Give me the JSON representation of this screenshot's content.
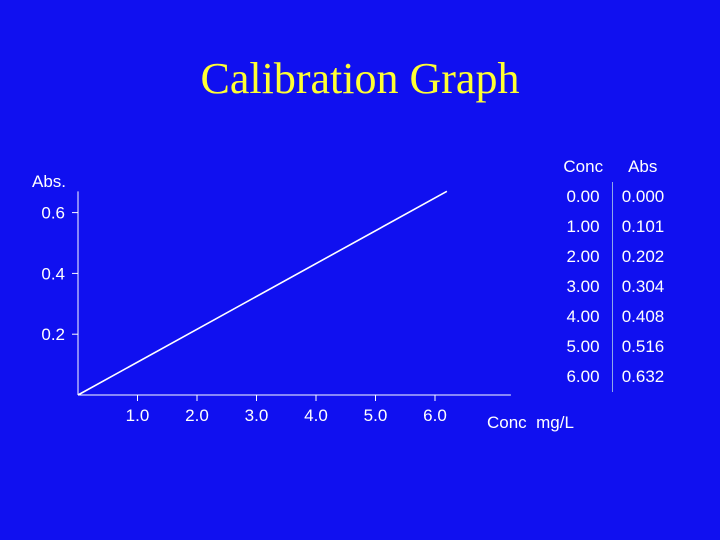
{
  "colors": {
    "background": "#1010f0",
    "title": "#ffff33",
    "text": "#ffffff",
    "line": "#ffffff"
  },
  "slide": {
    "title": "Calibration Graph"
  },
  "table": {
    "headers": [
      "Conc",
      "Abs"
    ],
    "rows": [
      [
        "0.00",
        "0.000"
      ],
      [
        "1.00",
        "0.101"
      ],
      [
        "2.00",
        "0.202"
      ],
      [
        "3.00",
        "0.304"
      ],
      [
        "4.00",
        "0.408"
      ],
      [
        "5.00",
        "0.516"
      ],
      [
        "6.00",
        "0.632"
      ]
    ]
  },
  "chart_data": {
    "type": "line",
    "title": "",
    "xlabel": "Conc  mg/L",
    "ylabel": "Abs.",
    "xlim": [
      0,
      6.2
    ],
    "ylim": [
      0,
      0.67
    ],
    "x_ticks": [
      1.0,
      2.0,
      3.0,
      4.0,
      5.0,
      6.0
    ],
    "x_tick_labels": [
      "1.0",
      "2.0",
      "3.0",
      "4.0",
      "5.0",
      "6.0"
    ],
    "y_ticks": [
      0.2,
      0.4,
      0.6
    ],
    "y_tick_labels": [
      "0.2",
      "0.4",
      "0.6"
    ],
    "grid": false,
    "series": [
      {
        "x": [
          0.0,
          6.2
        ],
        "y": [
          0.0,
          0.67
        ]
      }
    ]
  }
}
